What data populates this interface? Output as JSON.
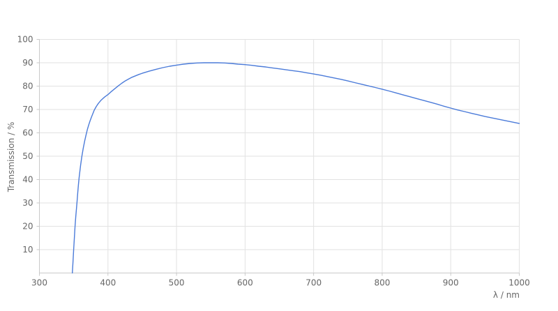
{
  "chart_data": {
    "type": "line",
    "title": "",
    "xlabel": "λ / nm",
    "ylabel": "Transmission / %",
    "xlim": [
      300,
      1000
    ],
    "ylim": [
      0,
      100
    ],
    "x_ticks": [
      300,
      400,
      500,
      600,
      700,
      800,
      900,
      1000
    ],
    "y_ticks": [
      10,
      20,
      30,
      40,
      50,
      60,
      70,
      80,
      90,
      100
    ],
    "grid": true,
    "legend_position": "none",
    "series": [
      {
        "name": "Transmission",
        "color": "#4b7bd9",
        "points": [
          [
            348,
            0
          ],
          [
            349,
            5
          ],
          [
            350,
            10
          ],
          [
            351,
            15
          ],
          [
            352,
            20
          ],
          [
            353,
            24
          ],
          [
            354,
            27.5
          ],
          [
            355,
            31
          ],
          [
            356,
            34.5
          ],
          [
            357,
            38
          ],
          [
            358,
            41
          ],
          [
            359,
            43.5
          ],
          [
            360,
            46
          ],
          [
            362,
            50
          ],
          [
            364,
            53.5
          ],
          [
            366,
            56.5
          ],
          [
            368,
            59
          ],
          [
            370,
            61.5
          ],
          [
            372,
            63.5
          ],
          [
            374,
            65.2
          ],
          [
            376,
            66.8
          ],
          [
            378,
            68.3
          ],
          [
            380,
            69.7
          ],
          [
            383,
            71.3
          ],
          [
            386,
            72.6
          ],
          [
            390,
            74
          ],
          [
            395,
            75.3
          ],
          [
            400,
            76.4
          ],
          [
            405,
            77.7
          ],
          [
            410,
            78.9
          ],
          [
            415,
            80.1
          ],
          [
            420,
            81.2
          ],
          [
            425,
            82.2
          ],
          [
            430,
            83
          ],
          [
            435,
            83.8
          ],
          [
            440,
            84.4
          ],
          [
            445,
            85
          ],
          [
            450,
            85.5
          ],
          [
            460,
            86.4
          ],
          [
            470,
            87.2
          ],
          [
            480,
            87.9
          ],
          [
            490,
            88.5
          ],
          [
            500,
            89
          ],
          [
            510,
            89.4
          ],
          [
            520,
            89.7
          ],
          [
            530,
            89.9
          ],
          [
            540,
            90
          ],
          [
            550,
            90
          ],
          [
            560,
            90
          ],
          [
            570,
            89.9
          ],
          [
            580,
            89.7
          ],
          [
            590,
            89.4
          ],
          [
            600,
            89.2
          ],
          [
            610,
            88.9
          ],
          [
            620,
            88.5
          ],
          [
            630,
            88.2
          ],
          [
            640,
            87.8
          ],
          [
            650,
            87.4
          ],
          [
            660,
            87
          ],
          [
            670,
            86.6
          ],
          [
            680,
            86.2
          ],
          [
            690,
            85.7
          ],
          [
            700,
            85.2
          ],
          [
            710,
            84.7
          ],
          [
            720,
            84.1
          ],
          [
            730,
            83.5
          ],
          [
            740,
            82.9
          ],
          [
            750,
            82.2
          ],
          [
            760,
            81.5
          ],
          [
            770,
            80.8
          ],
          [
            780,
            80.1
          ],
          [
            790,
            79.4
          ],
          [
            800,
            78.7
          ],
          [
            810,
            77.9
          ],
          [
            820,
            77.1
          ],
          [
            830,
            76.3
          ],
          [
            840,
            75.5
          ],
          [
            850,
            74.7
          ],
          [
            860,
            73.9
          ],
          [
            870,
            73.1
          ],
          [
            880,
            72.3
          ],
          [
            890,
            71.4
          ],
          [
            900,
            70.6
          ],
          [
            910,
            69.8
          ],
          [
            920,
            69.1
          ],
          [
            930,
            68.4
          ],
          [
            940,
            67.7
          ],
          [
            950,
            67
          ],
          [
            960,
            66.4
          ],
          [
            970,
            65.8
          ],
          [
            980,
            65.2
          ],
          [
            990,
            64.6
          ],
          [
            1000,
            64
          ]
        ]
      }
    ]
  },
  "colors": {
    "background": "#ffffff",
    "gridline": "#e2e2e2",
    "axis_line": "#c9c9c9",
    "tick_label": "#666666",
    "line": "#4b7bd9"
  }
}
